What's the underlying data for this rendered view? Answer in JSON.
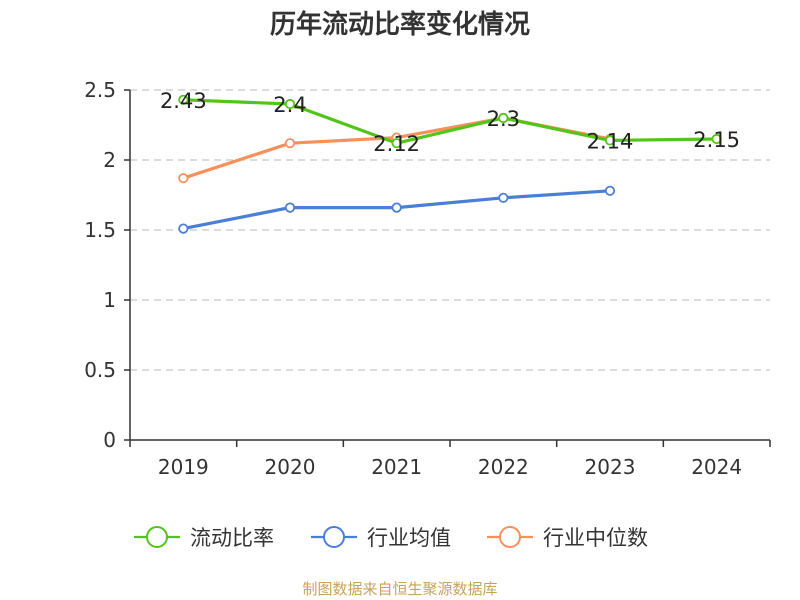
{
  "chart_data": {
    "type": "line",
    "title": "历年流动比率变化情况",
    "categories": [
      "2019",
      "2020",
      "2021",
      "2022",
      "2023",
      "2024"
    ],
    "ylim": [
      0,
      2.5
    ],
    "yticks": [
      "0",
      "0.5",
      "1",
      "1.5",
      "2",
      "2.5"
    ],
    "xlabel": "",
    "ylabel": "",
    "grid": true,
    "legend_position": "bottom",
    "series": [
      {
        "name": "流动比率",
        "values": [
          2.43,
          2.4,
          2.12,
          2.3,
          2.14,
          2.15
        ],
        "color": "#52c41a",
        "labels": [
          "2.43",
          "2.4",
          "2.12",
          "2.3",
          "2.14",
          "2.15"
        ]
      },
      {
        "name": "行业均值",
        "values": [
          1.51,
          1.66,
          1.66,
          1.73,
          1.78,
          null
        ],
        "color": "#4a7fd8"
      },
      {
        "name": "行业中位数",
        "values": [
          1.87,
          2.12,
          2.16,
          2.3,
          2.15,
          null
        ],
        "color": "#f7905a"
      }
    ]
  },
  "footer": {
    "source": "制图数据来自恒生聚源数据库"
  }
}
